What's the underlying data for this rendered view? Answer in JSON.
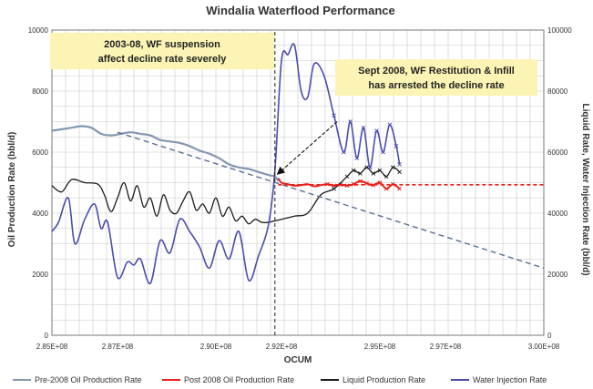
{
  "chart_data": {
    "type": "line",
    "title": "Windalia Waterflood Performance",
    "xlabel": "OCUM",
    "ylabel": "Oil Production Rate (bbl/d)",
    "y2label": "Liquid Rate, Water Injection Rate (bbl/d)",
    "xlim": [
      285000000,
      300000000
    ],
    "ylim": [
      0,
      10000
    ],
    "y2lim": [
      0,
      100000
    ],
    "x_ticks": [
      285000000,
      287000000,
      290000000,
      292000000,
      295000000,
      297000000,
      300000000
    ],
    "x_tick_labels": [
      "2.85E+08",
      "2.87E+08",
      "2.90E+08",
      "2.92E+08",
      "2.95E+08",
      "2.97E+08",
      "3.00E+08"
    ],
    "y_ticks": [
      0,
      2000,
      4000,
      6000,
      8000,
      10000
    ],
    "y_tick_labels": [
      "0",
      "2000",
      "4000",
      "6000",
      "8000",
      "10000"
    ],
    "y2_ticks": [
      0,
      20000,
      40000,
      60000,
      80000,
      100000
    ],
    "y2_tick_labels": [
      "0",
      "20000",
      "40000",
      "60000",
      "80000",
      "100000"
    ],
    "grid": true,
    "legend_position": "bottom",
    "colors": {
      "pre2008": "#8496b0",
      "pre2008_trend": "#5a6f93",
      "post2008": "#e8211c",
      "post2008_trend": "#e8211c",
      "liquid": "#1a1a1a",
      "injection": "#4a4cae",
      "annotation_bg": "#fbf4b4",
      "grid": "#c8c8c8"
    },
    "series": [
      {
        "name": "Pre-2008 Oil Production Rate",
        "axis": "left",
        "x": [
          285000000,
          285300000,
          285600000,
          285900000,
          286200000,
          286500000,
          286800000,
          287100000,
          287400000,
          287700000,
          288000000,
          288300000,
          288600000,
          288900000,
          289200000,
          289500000,
          289800000,
          290100000,
          290400000,
          290700000,
          291000000,
          291300000,
          291600000,
          291800000,
          291900000
        ],
        "values": [
          6700,
          6750,
          6800,
          6850,
          6800,
          6600,
          6550,
          6600,
          6650,
          6600,
          6550,
          6400,
          6350,
          6300,
          6200,
          6050,
          5950,
          5800,
          5600,
          5500,
          5450,
          5350,
          5250,
          5200,
          5050
        ]
      },
      {
        "name": "Post 2008 Oil Production Rate",
        "axis": "left",
        "x": [
          291900000,
          292000000,
          292200000,
          292400000,
          292600000,
          292800000,
          293000000,
          293200000,
          293400000,
          293600000,
          293800000,
          294000000,
          294200000,
          294400000,
          294600000,
          294800000,
          295000000,
          295200000,
          295400000,
          295600000
        ],
        "values": [
          5150,
          5000,
          4950,
          4900,
          4920,
          4950,
          4880,
          4920,
          4950,
          4900,
          4930,
          4900,
          4950,
          5050,
          4980,
          4920,
          5000,
          4800,
          4950,
          4800
        ]
      },
      {
        "name": "Liquid Production Rate",
        "axis": "right",
        "x": [
          285000000,
          285300000,
          285600000,
          286000000,
          286400000,
          286600000,
          286800000,
          287000000,
          287200000,
          287400000,
          287600000,
          287800000,
          288000000,
          288200000,
          288400000,
          288600000,
          288800000,
          289000000,
          289200000,
          289400000,
          289600000,
          289800000,
          290000000,
          290200000,
          290400000,
          290600000,
          290800000,
          291000000,
          291200000,
          291400000,
          291600000,
          291800000,
          292000000,
          292400000,
          292800000,
          293200000,
          293600000,
          294000000,
          294200000,
          294400000,
          294600000,
          294800000,
          295000000,
          295200000,
          295400000,
          295600000
        ],
        "values": [
          49000,
          47000,
          51000,
          50000,
          49500,
          46000,
          40500,
          45000,
          50000,
          44000,
          49000,
          42000,
          45000,
          39000,
          46000,
          41000,
          40000,
          44000,
          47000,
          41000,
          43000,
          40000,
          45000,
          39000,
          42000,
          37500,
          39000,
          36500,
          38000,
          37000,
          37000,
          37500,
          38000,
          39000,
          40000,
          46000,
          48000,
          52000,
          54000,
          53000,
          55000,
          53000,
          54000,
          52000,
          55000,
          53500
        ]
      },
      {
        "name": "Water Injection Rate",
        "axis": "right",
        "x": [
          285000000,
          285200000,
          285500000,
          285700000,
          286000000,
          286300000,
          286500000,
          286700000,
          287000000,
          287300000,
          287500000,
          287700000,
          288000000,
          288300000,
          288600000,
          288900000,
          289200000,
          289500000,
          289800000,
          290100000,
          290400000,
          290700000,
          291000000,
          291300000,
          291600000,
          291800000,
          292000000,
          292200000,
          292400000,
          292600000,
          292800000,
          293000000,
          293300000,
          293600000,
          293900000,
          294100000,
          294300000,
          294500000,
          294700000,
          294900000,
          295100000,
          295300000,
          295500000,
          295600000
        ],
        "values": [
          34000,
          37000,
          45000,
          30000,
          38000,
          43000,
          35000,
          37000,
          19000,
          24000,
          23000,
          25000,
          17000,
          31000,
          27000,
          38000,
          34000,
          29000,
          22000,
          31000,
          25000,
          34000,
          18000,
          26000,
          36000,
          54000,
          90000,
          92000,
          95000,
          80000,
          78000,
          89000,
          85000,
          72000,
          60000,
          70000,
          58000,
          68000,
          55000,
          67000,
          60000,
          69000,
          62000,
          56000
        ]
      },
      {
        "name": "Pre-2008 decline trend",
        "axis": "left",
        "style": "dashed",
        "x": [
          287000000,
          300000000
        ],
        "values": [
          6650,
          2200
        ]
      },
      {
        "name": "Post-2008 trend",
        "axis": "left",
        "style": "dashed",
        "x": [
          291900000,
          300000000
        ],
        "values": [
          4930,
          4930
        ]
      },
      {
        "name": "WF event marker",
        "axis": "left",
        "style": "dashed-vertical",
        "x": [
          291800000,
          291800000
        ],
        "values": [
          0,
          10000
        ]
      }
    ],
    "annotations": [
      {
        "lines": [
          "2003-08, WF suspension",
          "affect decline rate severely"
        ]
      },
      {
        "lines": [
          "Sept 2008, WF Restitution  & Infill",
          "has arrested the decline rate"
        ]
      }
    ],
    "arrow": {
      "from": [
        293700000,
        7000
      ],
      "to": [
        291900000,
        5300
      ]
    }
  }
}
